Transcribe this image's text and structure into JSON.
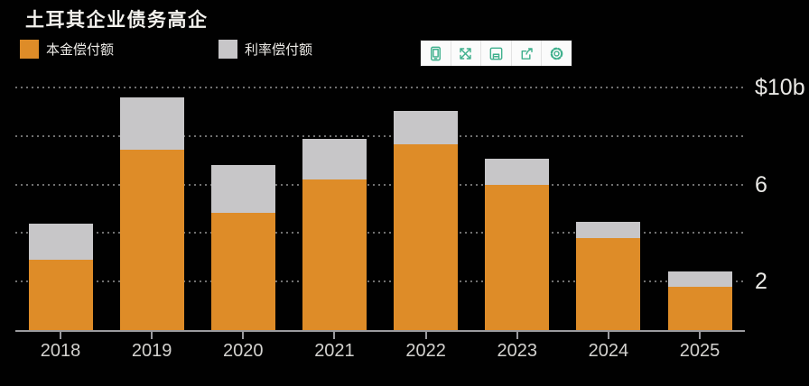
{
  "title": "土耳其企业债务高企",
  "legend": [
    {
      "label": "本金偿付额",
      "color": "#DE8C28"
    },
    {
      "label": "利率偿付额",
      "color": "#C7C6C8"
    }
  ],
  "toolbar": {
    "icons": [
      "mobile-view-icon",
      "fullscreen-icon",
      "save-icon",
      "export-icon",
      "settings-icon"
    ],
    "background": "#FBFBFB",
    "icon_color": "#3FB08D"
  },
  "chart_data": {
    "type": "bar",
    "stacked": true,
    "title": "土耳其企业债务高企",
    "categories": [
      "2018",
      "2019",
      "2020",
      "2021",
      "2022",
      "2023",
      "2024",
      "2025"
    ],
    "series": [
      {
        "name": "本金偿付额",
        "color": "#DE8C28",
        "values": [
          2.9,
          7.45,
          4.85,
          6.2,
          7.65,
          6.0,
          3.8,
          1.8
        ]
      },
      {
        "name": "利率偿付额",
        "color": "#C7C6C8",
        "values": [
          1.5,
          2.15,
          1.95,
          1.7,
          1.4,
          1.05,
          0.65,
          0.6
        ]
      }
    ],
    "unit": "billions USD",
    "ylim": [
      0,
      10
    ],
    "yticks": [
      {
        "value": 10,
        "label": "$10b"
      },
      {
        "value": 8,
        "label": ""
      },
      {
        "value": 6,
        "label": "6"
      },
      {
        "value": 4,
        "label": ""
      },
      {
        "value": 2,
        "label": "2"
      }
    ],
    "grid": "dotted-horizontal",
    "legend_position": "top-left",
    "background": "#010101"
  }
}
